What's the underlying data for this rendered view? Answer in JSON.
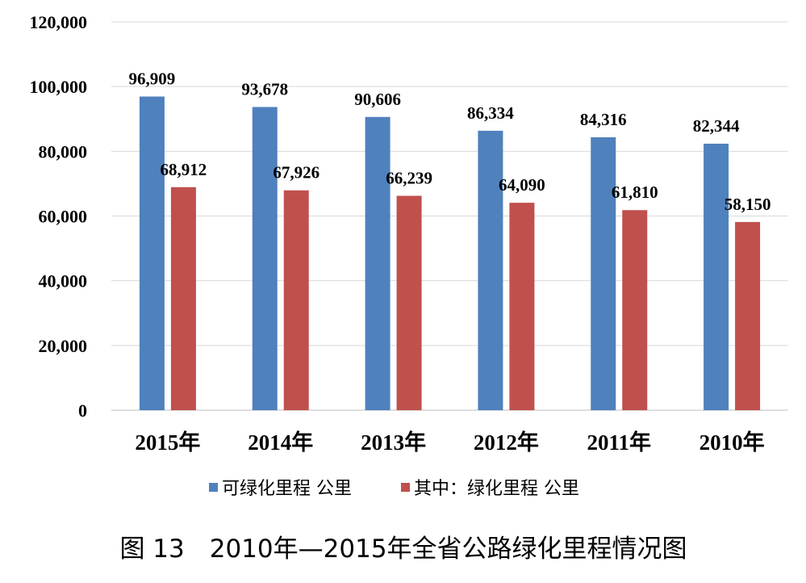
{
  "chart_data": {
    "type": "bar",
    "categories": [
      "2015年",
      "2014年",
      "2013年",
      "2012年",
      "2011年",
      "2010年"
    ],
    "series": [
      {
        "name": "可绿化里程 公里",
        "color": "#4F81BD",
        "values": [
          96909,
          93678,
          90606,
          86334,
          84316,
          82344
        ],
        "labels": [
          "96,909",
          "93,678",
          "90,606",
          "86,334",
          "84,316",
          "82,344"
        ]
      },
      {
        "name": "其中：绿化里程 公里",
        "color": "#C0504D",
        "values": [
          68912,
          67926,
          66239,
          64090,
          61810,
          58150
        ],
        "labels": [
          "68,912",
          "67,926",
          "66,239",
          "64,090",
          "61,810",
          "58,150"
        ]
      }
    ],
    "ylim": [
      0,
      120000
    ],
    "yticks": [
      0,
      20000,
      40000,
      60000,
      80000,
      100000,
      120000
    ],
    "ytick_labels": [
      "0",
      "20,000",
      "40,000",
      "60,000",
      "80,000",
      "100,000",
      "120,000"
    ],
    "grid": true,
    "legend_position": "bottom",
    "title": "图 13　2010年—2015年全省公路绿化里程情况图",
    "xlabel": "",
    "ylabel": ""
  }
}
